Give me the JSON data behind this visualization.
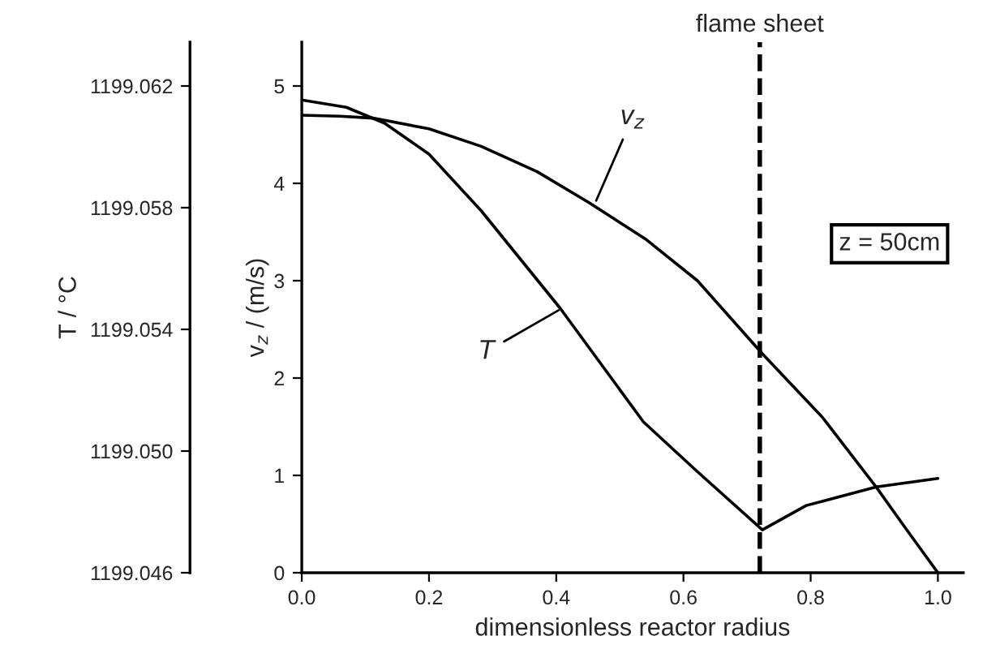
{
  "chart_data": {
    "type": "line",
    "xlabel": "dimensionless reactor radius",
    "ylabel": "v$_{z}$ / (m/s)",
    "y2label": "T / °C",
    "xlim": [
      0,
      1.04
    ],
    "xticks": [
      {
        "value": 0,
        "label": "0.0"
      },
      {
        "value": 0.2,
        "label": "0.2"
      },
      {
        "value": 0.4,
        "label": "0.4"
      },
      {
        "value": 0.6,
        "label": "0.6"
      },
      {
        "value": 0.8,
        "label": "0.8"
      },
      {
        "value": 1.0,
        "label": "1.0"
      }
    ],
    "ylim": [
      0,
      5.45
    ],
    "yticks": [
      0,
      1,
      2,
      3,
      4,
      5
    ],
    "y2lim": [
      1199.046,
      1199.06344
    ],
    "y2ticks": [
      {
        "value": 1199.046,
        "label": "1199.046"
      },
      {
        "value": 1199.05,
        "label": "1199.050"
      },
      {
        "value": 1199.054,
        "label": "1199.054"
      },
      {
        "value": 1199.058,
        "label": "1199.058"
      },
      {
        "value": 1199.062,
        "label": "1199.062"
      }
    ],
    "series": [
      {
        "color": "#000000",
        "x": [
          0,
          0.06,
          0.112,
          0.2,
          0.282,
          0.37,
          0.452,
          0.54,
          0.622,
          0.724,
          0.818,
          0.903,
          0.95,
          1.0
        ],
        "values": [
          4.7,
          4.69,
          4.67,
          4.56,
          4.38,
          4.12,
          3.8,
          3.43,
          3.0,
          2.25,
          1.6,
          0.88,
          0.45,
          0
        ]
      },
      {
        "color": "#000000",
        "axis": "y2",
        "x": [
          0,
          0.07,
          0.13,
          0.2,
          0.282,
          0.406,
          0.537,
          0.62,
          0.724,
          0.793,
          0.903,
          1.0
        ],
        "values": [
          1199.06154,
          1199.0613,
          1199.06078,
          1199.05976,
          1199.0579,
          1199.0547,
          1199.05096,
          1199.04936,
          1199.04741,
          1199.04821,
          1199.04882,
          1199.0491
        ]
      }
    ],
    "ref_lines": [
      {
        "axis": "x",
        "value": 0.72,
        "label": "flame sheet",
        "color": "#000000",
        "line_style": "dashed"
      }
    ],
    "annotations": [
      {
        "text": "v$_{z}$",
        "x": 0.46,
        "y": 3.78
      },
      {
        "text": "T",
        "x": 0.41,
        "y": 2.72
      },
      "z = 50cm"
    ],
    "grid": false,
    "line_style": "solid",
    "marker": "none"
  }
}
